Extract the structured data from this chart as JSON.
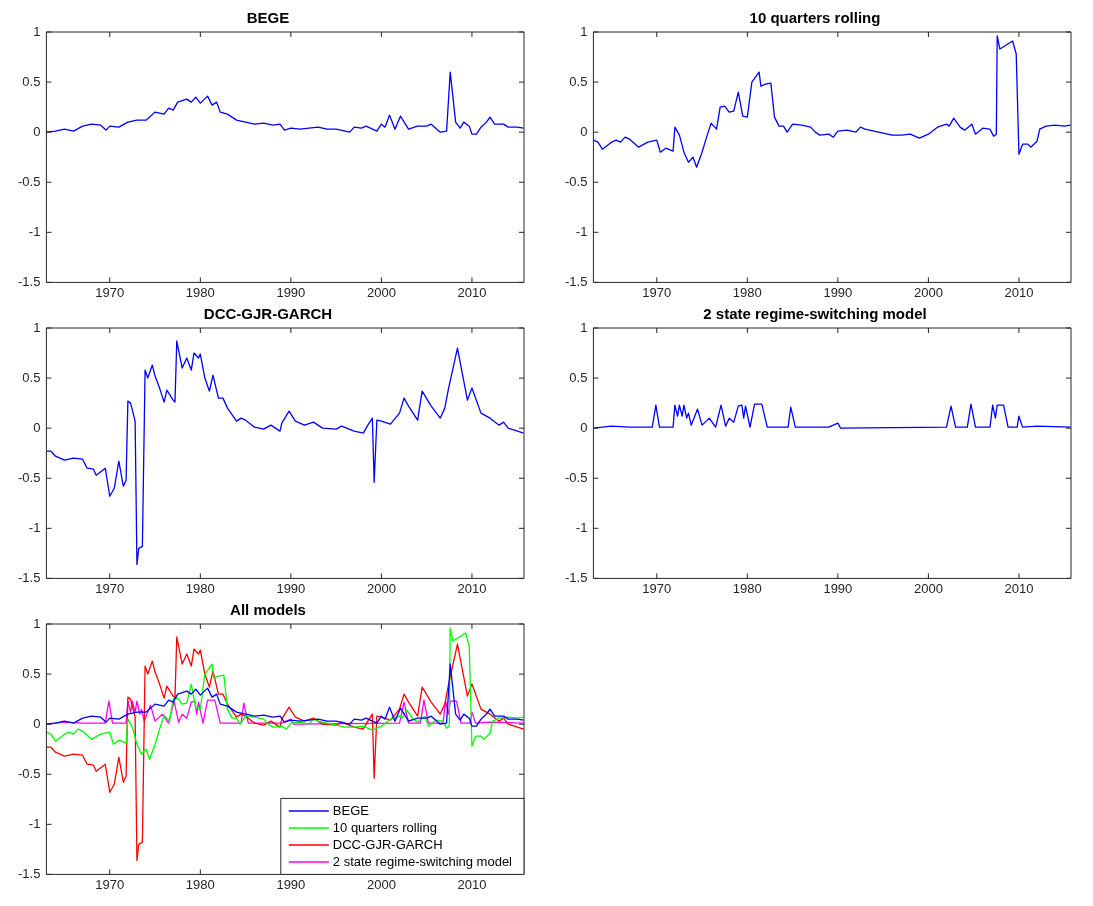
{
  "chart_data": [
    {
      "type": "line",
      "title": "BEGE",
      "xlim": [
        1963,
        2015.75
      ],
      "xticks": [
        1970,
        1980,
        1990,
        2000,
        2010
      ],
      "ylim": [
        -1.5,
        1
      ],
      "yticks": [
        -1.5,
        -1,
        -0.5,
        0,
        0.5,
        1
      ],
      "grid": false,
      "legend": false,
      "marker": "none",
      "series": [
        {
          "color": "#0000ff",
          "x": [
            1963,
            1964,
            1965,
            1966,
            1967,
            1968,
            1969,
            1969.6,
            1970,
            1971,
            1972,
            1973,
            1974,
            1975,
            1976,
            1976.5,
            1977,
            1977.5,
            1978.5,
            1979,
            1979.5,
            1980,
            1980.8,
            1981.3,
            1981.8,
            1982.2,
            1983,
            1984,
            1985,
            1986,
            1987,
            1988,
            1988.8,
            1989.3,
            1990,
            1991,
            1992,
            1993,
            1994,
            1995,
            1996.5,
            1997,
            1997.8,
            1998.3,
            1999.5,
            2000,
            2000.4,
            2000.9,
            2001.5,
            2002.1,
            2003,
            2004,
            2005,
            2005.5,
            2006.5,
            2007.2,
            2007.6,
            2008.2,
            2008.7,
            2009.1,
            2009.7,
            2010,
            2010.5,
            2011,
            2011.6,
            2012,
            2012.5,
            2013.5,
            2014,
            2015,
            2015.7
          ],
          "values": [
            0,
            0.01,
            0.03,
            0.01,
            0.06,
            0.08,
            0.07,
            0.02,
            0.06,
            0.05,
            0.1,
            0.12,
            0.12,
            0.2,
            0.18,
            0.24,
            0.22,
            0.3,
            0.33,
            0.3,
            0.35,
            0.29,
            0.36,
            0.27,
            0.3,
            0.2,
            0.18,
            0.12,
            0.1,
            0.08,
            0.09,
            0.07,
            0.08,
            0.02,
            0.04,
            0.03,
            0.04,
            0.05,
            0.03,
            0.03,
            0,
            0.05,
            0.04,
            0.06,
            0.01,
            0.08,
            0.05,
            0.17,
            0.03,
            0.16,
            0.03,
            0.06,
            0.06,
            0.08,
            0,
            0.01,
            0.6,
            0.1,
            0.04,
            0.1,
            0.06,
            -0.02,
            -0.02,
            0.05,
            0.1,
            0.15,
            0.08,
            0.08,
            0.05,
            0.05,
            0.04
          ]
        }
      ]
    },
    {
      "type": "line",
      "title": "10 quarters rolling",
      "xlim": [
        1963,
        2015.75
      ],
      "xticks": [
        1970,
        1980,
        1990,
        2000,
        2010
      ],
      "ylim": [
        -1.5,
        1
      ],
      "yticks": [
        -1.5,
        -1,
        -0.5,
        0,
        0.5,
        1
      ],
      "grid": false,
      "legend": false,
      "marker": "none",
      "series": [
        {
          "color": "#0000ff",
          "x": [
            1963,
            1963.5,
            1964,
            1965,
            1965.5,
            1966,
            1966.5,
            1967,
            1968,
            1969,
            1970,
            1970.4,
            1971,
            1971.8,
            1972,
            1972.5,
            1973,
            1973.5,
            1974,
            1974.4,
            1975,
            1975.5,
            1976,
            1976.6,
            1977,
            1977.5,
            1978,
            1978.5,
            1979,
            1979.5,
            1980,
            1980.5,
            1981.3,
            1981.5,
            1982,
            1982.6,
            1983,
            1983.5,
            1984,
            1984.4,
            1985,
            1986,
            1987,
            1987.5,
            1988,
            1989,
            1989.5,
            1990,
            1991,
            1992,
            1992.5,
            1993,
            1994,
            1995,
            1996,
            1997,
            1998,
            1999,
            2000,
            2001,
            2002,
            2002.3,
            2002.8,
            2003.5,
            2004,
            2004.8,
            2005.2,
            2006,
            2006.8,
            2007.2,
            2007.5,
            2007.6,
            2007.9,
            2009.3,
            2009.7,
            2010,
            2010.4,
            2011,
            2011.3,
            2012,
            2012.3,
            2013,
            2014,
            2015,
            2015.7
          ],
          "values": [
            -0.08,
            -0.1,
            -0.17,
            -0.1,
            -0.08,
            -0.1,
            -0.05,
            -0.07,
            -0.15,
            -0.1,
            -0.08,
            -0.2,
            -0.16,
            -0.19,
            0.05,
            -0.03,
            -0.2,
            -0.3,
            -0.25,
            -0.35,
            -0.2,
            -0.05,
            0.09,
            0.03,
            0.25,
            0.26,
            0.2,
            0.21,
            0.4,
            0.16,
            0.15,
            0.5,
            0.6,
            0.46,
            0.48,
            0.49,
            0.15,
            0.06,
            0.06,
            0,
            0.08,
            0.07,
            0.05,
            0,
            -0.03,
            -0.02,
            -0.05,
            0.01,
            0.02,
            0,
            0.05,
            0.03,
            0.01,
            -0.01,
            -0.03,
            -0.03,
            -0.02,
            -0.06,
            -0.02,
            0.05,
            0.08,
            0.06,
            0.14,
            0.05,
            0.02,
            0.08,
            -0.02,
            0.04,
            0.03,
            -0.04,
            -0.02,
            0.96,
            0.83,
            0.91,
            0.78,
            -0.22,
            -0.12,
            -0.12,
            -0.15,
            -0.09,
            0.03,
            0.06,
            0.07,
            0.06,
            0.07
          ]
        }
      ]
    },
    {
      "type": "line",
      "title": "DCC-GJR-GARCH",
      "xlim": [
        1963,
        2015.75
      ],
      "xticks": [
        1970,
        1980,
        1990,
        2000,
        2010
      ],
      "ylim": [
        -1.5,
        1
      ],
      "yticks": [
        -1.5,
        -1,
        -0.5,
        0,
        0.5,
        1
      ],
      "grid": false,
      "legend": false,
      "marker": "none",
      "series": [
        {
          "color": "#0000ff",
          "x": [
            1963,
            1963.5,
            1964,
            1965,
            1966,
            1967,
            1967.5,
            1968.2,
            1968.5,
            1969.5,
            1970,
            1970.5,
            1971,
            1971.5,
            1971.8,
            1972,
            1972.3,
            1972.8,
            1973,
            1973.2,
            1973.6,
            1973.9,
            1974.2,
            1974.7,
            1975,
            1975.5,
            1976,
            1976.3,
            1977,
            1977.2,
            1977.4,
            1978,
            1978.5,
            1979,
            1979.3,
            1979.8,
            1980,
            1980.5,
            1981,
            1981.4,
            1982,
            1982.5,
            1983,
            1984,
            1984.5,
            1985,
            1986,
            1987,
            1987.8,
            1988.8,
            1989,
            1989.8,
            1990.5,
            1991.5,
            1992.5,
            1993.5,
            1995,
            1995.6,
            1997,
            1998,
            1998.5,
            1999,
            1999.2,
            1999.5,
            2000,
            2001,
            2002,
            2002.5,
            2003,
            2004,
            2004.5,
            2005.5,
            2006.5,
            2007,
            2007.4,
            2008.4,
            2009.5,
            2010,
            2011,
            2012,
            2013,
            2013.5,
            2014,
            2015.7
          ],
          "values": [
            -0.23,
            -0.23,
            -0.28,
            -0.32,
            -0.3,
            -0.31,
            -0.4,
            -0.41,
            -0.47,
            -0.4,
            -0.68,
            -0.6,
            -0.33,
            -0.58,
            -0.52,
            0.27,
            0.25,
            0.07,
            -1.36,
            -1.2,
            -1.18,
            0.58,
            0.5,
            0.63,
            0.52,
            0.4,
            0.26,
            0.38,
            0.28,
            0.26,
            0.87,
            0.6,
            0.7,
            0.58,
            0.75,
            0.7,
            0.74,
            0.5,
            0.37,
            0.53,
            0.3,
            0.3,
            0.2,
            0.07,
            0.1,
            0.08,
            0.01,
            -0.01,
            0.03,
            -0.03,
            0.05,
            0.17,
            0.07,
            0.03,
            0.06,
            0,
            -0.01,
            0.02,
            -0.03,
            -0.05,
            0.03,
            0.1,
            -0.54,
            0.08,
            0.07,
            0.04,
            0.15,
            0.3,
            0.22,
            0.08,
            0.37,
            0.22,
            0.1,
            0.2,
            0.39,
            0.8,
            0.28,
            0.4,
            0.15,
            0.1,
            0.03,
            0.06,
            0,
            -0.05
          ]
        }
      ]
    },
    {
      "type": "line",
      "title": "2 state regime-switching model",
      "xlim": [
        1963,
        2015.75
      ],
      "xticks": [
        1970,
        1980,
        1990,
        2000,
        2010
      ],
      "ylim": [
        -1.5,
        1
      ],
      "yticks": [
        -1.5,
        -1,
        -0.5,
        0,
        0.5,
        1
      ],
      "grid": false,
      "legend": false,
      "marker": "none",
      "series": [
        {
          "color": "#0000ff",
          "x": [
            1963,
            1965,
            1967,
            1969.5,
            1969.9,
            1970.3,
            1971.8,
            1972,
            1972.3,
            1972.5,
            1972.8,
            1973,
            1973.3,
            1973.5,
            1973.8,
            1974.5,
            1975,
            1975.8,
            1976.5,
            1977.1,
            1977.6,
            1978,
            1978.5,
            1979,
            1979.4,
            1979.6,
            1979.8,
            1980.3,
            1980.8,
            1981.6,
            1982.2,
            1984.5,
            1984.8,
            1985.3,
            1989,
            1990,
            1990.3,
            2002,
            2002.5,
            2003,
            2004.3,
            2004.7,
            2005.2,
            2006.8,
            2007.1,
            2007.4,
            2007.6,
            2008.3,
            2008.8,
            2009.8,
            2010,
            2010.4,
            2012,
            2015.7
          ],
          "values": [
            0,
            0.02,
            0.01,
            0.01,
            0.23,
            0.01,
            0.01,
            0.23,
            0.12,
            0.23,
            0.12,
            0.23,
            0.1,
            0.15,
            0.03,
            0.19,
            0.03,
            0.1,
            0.01,
            0.23,
            0.02,
            0.1,
            0.06,
            0.22,
            0.23,
            0.1,
            0.22,
            0.01,
            0.24,
            0.24,
            0.01,
            0.01,
            0.21,
            0.01,
            0.01,
            0.05,
            0,
            0.01,
            0.22,
            0.01,
            0.01,
            0.24,
            0.01,
            0.01,
            0.23,
            0.1,
            0.23,
            0.23,
            0.01,
            0.01,
            0.12,
            0.01,
            0.02,
            0.01
          ]
        }
      ]
    },
    {
      "type": "line",
      "title": "All models",
      "xlim": [
        1963,
        2015.75
      ],
      "xticks": [
        1970,
        1980,
        1990,
        2000,
        2010
      ],
      "ylim": [
        -1.5,
        1
      ],
      "yticks": [
        -1.5,
        -1,
        -0.5,
        0,
        0.5,
        1
      ],
      "grid": false,
      "legend": "bottom right",
      "marker": "none",
      "series": [
        {
          "name": "BEGE",
          "color": "#0000ff",
          "x": [
            1963,
            1964,
            1965,
            1966,
            1967,
            1968,
            1969,
            1969.6,
            1970,
            1971,
            1972,
            1973,
            1974,
            1975,
            1976,
            1976.5,
            1977,
            1977.5,
            1978.5,
            1979,
            1979.5,
            1980,
            1980.8,
            1981.3,
            1981.8,
            1982.2,
            1983,
            1984,
            1985,
            1986,
            1987,
            1988,
            1988.8,
            1989.3,
            1990,
            1991,
            1992,
            1993,
            1994,
            1995,
            1996.5,
            1997,
            1997.8,
            1998.3,
            1999.5,
            2000,
            2000.4,
            2000.9,
            2001.5,
            2002.1,
            2003,
            2004,
            2005,
            2005.5,
            2006.5,
            2007.2,
            2007.6,
            2008.2,
            2008.7,
            2009.1,
            2009.7,
            2010,
            2010.5,
            2011,
            2011.6,
            2012,
            2012.5,
            2013.5,
            2014,
            2015,
            2015.7
          ],
          "values": [
            0,
            0.01,
            0.03,
            0.01,
            0.06,
            0.08,
            0.07,
            0.02,
            0.06,
            0.05,
            0.1,
            0.12,
            0.12,
            0.2,
            0.18,
            0.24,
            0.22,
            0.3,
            0.33,
            0.3,
            0.35,
            0.29,
            0.36,
            0.27,
            0.3,
            0.2,
            0.18,
            0.12,
            0.1,
            0.08,
            0.09,
            0.07,
            0.08,
            0.02,
            0.04,
            0.03,
            0.04,
            0.05,
            0.03,
            0.03,
            0,
            0.05,
            0.04,
            0.06,
            0.01,
            0.08,
            0.05,
            0.17,
            0.03,
            0.16,
            0.03,
            0.06,
            0.06,
            0.08,
            0,
            0.01,
            0.6,
            0.1,
            0.04,
            0.1,
            0.06,
            -0.02,
            -0.02,
            0.05,
            0.1,
            0.15,
            0.08,
            0.08,
            0.05,
            0.05,
            0.04
          ]
        },
        {
          "name": "10 quarters rolling",
          "color": "#00ff00",
          "x": [
            1963,
            1963.5,
            1964,
            1965,
            1965.5,
            1966,
            1966.5,
            1967,
            1968,
            1969,
            1970,
            1970.4,
            1971,
            1971.8,
            1972,
            1972.5,
            1973,
            1973.5,
            1974,
            1974.4,
            1975,
            1975.5,
            1976,
            1976.6,
            1977,
            1977.5,
            1978,
            1978.5,
            1979,
            1979.5,
            1980,
            1980.5,
            1981.3,
            1981.5,
            1982,
            1982.6,
            1983,
            1983.5,
            1984,
            1984.4,
            1985,
            1986,
            1987,
            1987.5,
            1988,
            1989,
            1989.5,
            1990,
            1991,
            1992,
            1992.5,
            1993,
            1994,
            1995,
            1996,
            1997,
            1998,
            1999,
            2000,
            2001,
            2002,
            2002.3,
            2002.8,
            2003.5,
            2004,
            2004.8,
            2005.2,
            2006,
            2006.8,
            2007.2,
            2007.5,
            2007.6,
            2007.9,
            2009.3,
            2009.7,
            2010,
            2010.4,
            2011,
            2011.3,
            2012,
            2012.3,
            2013,
            2014,
            2015,
            2015.7
          ],
          "values": [
            -0.08,
            -0.1,
            -0.17,
            -0.1,
            -0.08,
            -0.1,
            -0.05,
            -0.07,
            -0.15,
            -0.1,
            -0.08,
            -0.2,
            -0.16,
            -0.19,
            0.05,
            -0.03,
            -0.2,
            -0.3,
            -0.25,
            -0.35,
            -0.2,
            -0.05,
            0.09,
            0.03,
            0.25,
            0.26,
            0.2,
            0.21,
            0.4,
            0.16,
            0.15,
            0.5,
            0.6,
            0.46,
            0.48,
            0.49,
            0.15,
            0.06,
            0.06,
            0,
            0.08,
            0.07,
            0.05,
            0,
            -0.03,
            -0.02,
            -0.05,
            0.01,
            0.02,
            0,
            0.05,
            0.03,
            0.01,
            -0.01,
            -0.03,
            -0.03,
            -0.02,
            -0.06,
            -0.02,
            0.05,
            0.08,
            0.06,
            0.14,
            0.05,
            0.02,
            0.08,
            -0.02,
            0.04,
            0.03,
            -0.04,
            -0.02,
            0.96,
            0.83,
            0.91,
            0.78,
            -0.22,
            -0.12,
            -0.12,
            -0.15,
            -0.09,
            0.03,
            0.06,
            0.07,
            0.06,
            0.07
          ]
        },
        {
          "name": "DCC-GJR-GARCH",
          "color": "#ff0000",
          "x": [
            1963,
            1963.5,
            1964,
            1965,
            1966,
            1967,
            1967.5,
            1968.2,
            1968.5,
            1969.5,
            1970,
            1970.5,
            1971,
            1971.5,
            1971.8,
            1972,
            1972.3,
            1972.8,
            1973,
            1973.2,
            1973.6,
            1973.9,
            1974.2,
            1974.7,
            1975,
            1975.5,
            1976,
            1976.3,
            1977,
            1977.2,
            1977.4,
            1978,
            1978.5,
            1979,
            1979.3,
            1979.8,
            1980,
            1980.5,
            1981,
            1981.4,
            1982,
            1982.5,
            1983,
            1984,
            1984.5,
            1985,
            1986,
            1987,
            1987.8,
            1988.8,
            1989,
            1989.8,
            1990.5,
            1991.5,
            1992.5,
            1993.5,
            1995,
            1995.6,
            1997,
            1998,
            1998.5,
            1999,
            1999.2,
            1999.5,
            2000,
            2001,
            2002,
            2002.5,
            2003,
            2004,
            2004.5,
            2005.5,
            2006.5,
            2007,
            2007.4,
            2008.4,
            2009.5,
            2010,
            2011,
            2012,
            2013,
            2013.5,
            2014,
            2015.7
          ],
          "values": [
            -0.23,
            -0.23,
            -0.28,
            -0.32,
            -0.3,
            -0.31,
            -0.4,
            -0.41,
            -0.47,
            -0.4,
            -0.68,
            -0.6,
            -0.33,
            -0.58,
            -0.52,
            0.27,
            0.25,
            0.07,
            -1.36,
            -1.2,
            -1.18,
            0.58,
            0.5,
            0.63,
            0.52,
            0.4,
            0.26,
            0.38,
            0.28,
            0.26,
            0.87,
            0.6,
            0.7,
            0.58,
            0.75,
            0.7,
            0.74,
            0.5,
            0.37,
            0.53,
            0.3,
            0.3,
            0.2,
            0.07,
            0.1,
            0.08,
            0.01,
            -0.01,
            0.03,
            -0.03,
            0.05,
            0.17,
            0.07,
            0.03,
            0.06,
            0,
            -0.01,
            0.02,
            -0.03,
            -0.05,
            0.03,
            0.1,
            -0.54,
            0.08,
            0.07,
            0.04,
            0.15,
            0.3,
            0.22,
            0.08,
            0.37,
            0.22,
            0.1,
            0.2,
            0.39,
            0.8,
            0.28,
            0.4,
            0.15,
            0.1,
            0.03,
            0.06,
            0,
            -0.05
          ]
        },
        {
          "name": "2 state regime-switching model",
          "color": "#ff00ff",
          "x": [
            1963,
            1965,
            1967,
            1969.5,
            1969.9,
            1970.3,
            1971.8,
            1972,
            1972.3,
            1972.5,
            1972.8,
            1973,
            1973.3,
            1973.5,
            1973.8,
            1974.5,
            1975,
            1975.8,
            1976.5,
            1977.1,
            1977.6,
            1978,
            1978.5,
            1979,
            1979.4,
            1979.6,
            1979.8,
            1980.3,
            1980.8,
            1981.6,
            1982.2,
            1984.5,
            1984.8,
            1985.3,
            1989,
            1990,
            1990.3,
            2002,
            2002.5,
            2003,
            2004.3,
            2004.7,
            2005.2,
            2006.8,
            2007.1,
            2007.4,
            2007.6,
            2008.3,
            2008.8,
            2009.8,
            2010,
            2010.4,
            2012,
            2015.7
          ],
          "values": [
            0,
            0.02,
            0.01,
            0.01,
            0.23,
            0.01,
            0.01,
            0.23,
            0.12,
            0.23,
            0.12,
            0.23,
            0.1,
            0.15,
            0.03,
            0.19,
            0.03,
            0.1,
            0.01,
            0.23,
            0.02,
            0.1,
            0.06,
            0.22,
            0.23,
            0.1,
            0.22,
            0.01,
            0.24,
            0.24,
            0.01,
            0.01,
            0.21,
            0.01,
            0.01,
            0.05,
            0,
            0.01,
            0.22,
            0.01,
            0.01,
            0.24,
            0.01,
            0.01,
            0.23,
            0.1,
            0.23,
            0.23,
            0.01,
            0.01,
            0.12,
            0.01,
            0.02,
            0.01
          ]
        }
      ]
    }
  ]
}
